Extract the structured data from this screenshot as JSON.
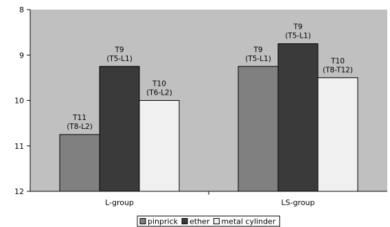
{
  "chart_data": {
    "type": "bar",
    "categories": [
      "L-group",
      "LS-group"
    ],
    "series": [
      {
        "name": "pinprick",
        "color": "#808080",
        "values": [
          10.75,
          9.25
        ],
        "labels": [
          [
            "T11",
            "(T8-L2)"
          ],
          [
            "T9",
            "(T5-L1)"
          ]
        ]
      },
      {
        "name": "ether",
        "color": "#3a3a3a",
        "values": [
          9.25,
          8.75
        ],
        "labels": [
          [
            "T9",
            "(T5-L1)"
          ],
          [
            "T9",
            "(T5-L1)"
          ]
        ]
      },
      {
        "name": "metal cylinder",
        "color": "#f0f0f0",
        "values": [
          10.0,
          9.5
        ],
        "labels": [
          [
            "T10",
            "(T6-L2)"
          ],
          [
            "T10",
            "(T8-T12)"
          ]
        ]
      }
    ],
    "ylim": [
      8,
      12
    ],
    "y_inverted": true,
    "yticks": [
      "8",
      "9",
      "10",
      "11",
      "12"
    ],
    "grid": false,
    "plot_background": "#c0c0c0",
    "legend": "bottom"
  }
}
